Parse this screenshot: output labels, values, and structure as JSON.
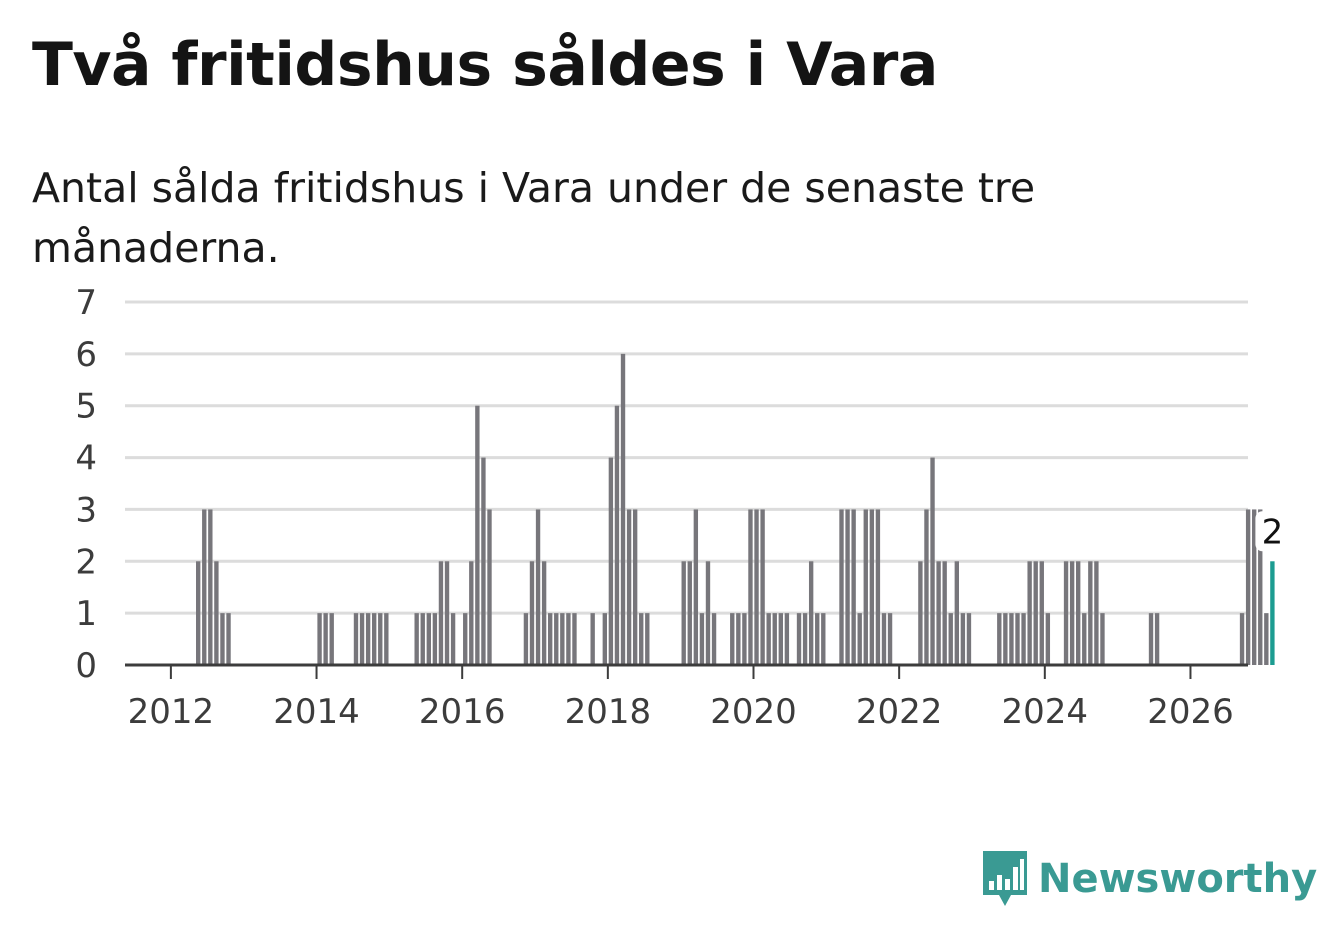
{
  "header": {
    "title": "Två fritidshus såldes i Vara",
    "subtitle": "Antal sålda fritidshus i Vara under de senaste tre månaderna."
  },
  "brand": {
    "name": "Newsworthy",
    "color": "#3a9a93"
  },
  "colors": {
    "bar": "#77767b",
    "highlight": "#1c9c91",
    "grid": "#dcdcdc",
    "axis": "#3c3c3c"
  },
  "chart_data": {
    "type": "bar",
    "title": "Två fritidshus såldes i Vara",
    "subtitle": "Antal sålda fritidshus i Vara under de senaste tre månaderna.",
    "xlabel": "",
    "ylabel": "",
    "ylim": [
      0,
      7
    ],
    "yticks": [
      "0",
      "1",
      "2",
      "3",
      "4",
      "5",
      "6",
      "7"
    ],
    "xticks": [
      {
        "label": "2012",
        "value": 2012
      },
      {
        "label": "2014",
        "value": 2014
      },
      {
        "label": "2016",
        "value": 2016
      },
      {
        "label": "2018",
        "value": 2018
      },
      {
        "label": "2020",
        "value": 2020
      },
      {
        "label": "2022",
        "value": 2022
      },
      {
        "label": "2024",
        "value": 2024
      },
      {
        "label": "2026",
        "value": 2026
      }
    ],
    "xrange": [
      2011.37,
      2026.79
    ],
    "start_year": 2011,
    "start_month": 6,
    "grid": true,
    "values": [
      0,
      0,
      0,
      0,
      0,
      0,
      0,
      0,
      0,
      0,
      0,
      2,
      3,
      3,
      2,
      1,
      1,
      0,
      0,
      0,
      0,
      0,
      0,
      0,
      0,
      0,
      0,
      0,
      0,
      0,
      0,
      1,
      1,
      1,
      0,
      0,
      0,
      1,
      1,
      1,
      1,
      1,
      1,
      0,
      0,
      0,
      0,
      1,
      1,
      1,
      1,
      2,
      2,
      1,
      0,
      1,
      2,
      5,
      4,
      3,
      0,
      0,
      0,
      0,
      0,
      1,
      2,
      3,
      2,
      1,
      1,
      1,
      1,
      1,
      0,
      0,
      1,
      0,
      1,
      4,
      5,
      6,
      3,
      3,
      1,
      1,
      0,
      0,
      0,
      0,
      0,
      2,
      2,
      3,
      1,
      2,
      1,
      0,
      0,
      1,
      1,
      1,
      3,
      3,
      3,
      1,
      1,
      1,
      1,
      0,
      1,
      1,
      2,
      1,
      1,
      0,
      0,
      3,
      3,
      3,
      1,
      3,
      3,
      3,
      1,
      1,
      0,
      0,
      0,
      0,
      2,
      3,
      4,
      2,
      2,
      1,
      2,
      1,
      1,
      0,
      0,
      0,
      0,
      1,
      1,
      1,
      1,
      1,
      2,
      2,
      2,
      1,
      0,
      0,
      2,
      2,
      2,
      1,
      2,
      2,
      1,
      0,
      0,
      0,
      0,
      0,
      0,
      0,
      1,
      1,
      0,
      0,
      0,
      0,
      0,
      0,
      0,
      0,
      0,
      0,
      0,
      0,
      0,
      1,
      3,
      3,
      3,
      1,
      2
    ],
    "highlight": {
      "label": "2",
      "value": 2,
      "index": 188
    }
  }
}
